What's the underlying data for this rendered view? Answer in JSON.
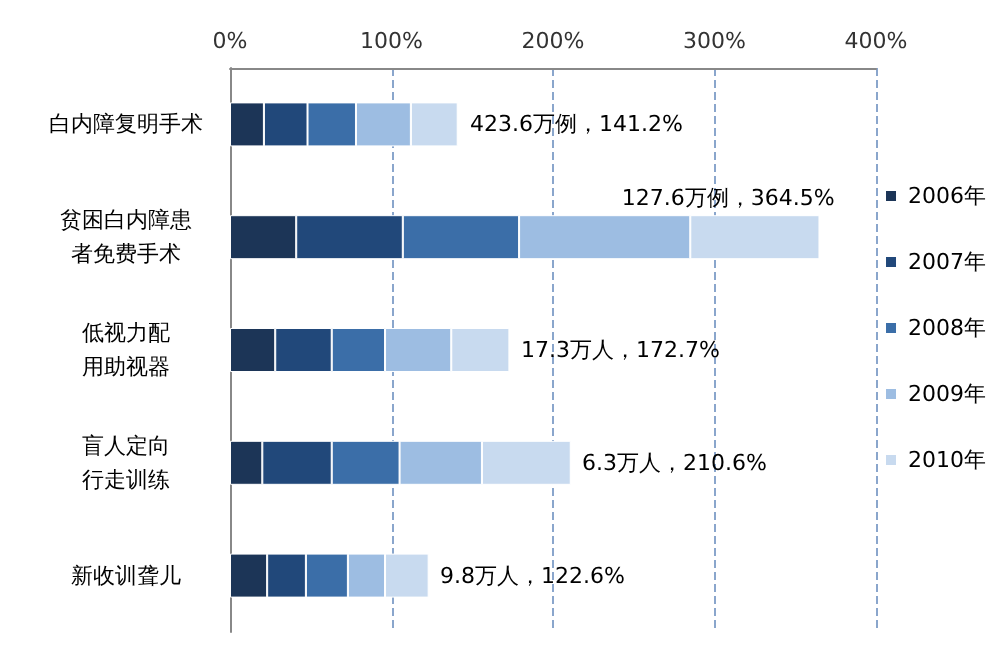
{
  "chart_data": {
    "type": "bar",
    "orientation": "horizontal",
    "stacked": true,
    "categories": [
      "白内障复明手术",
      "贫困白内障患者免费手术",
      "低视力配用助视器",
      "盲人定向行走训练",
      "新收训聋儿"
    ],
    "series": [
      {
        "name": "2006年",
        "color": "#1c3557",
        "values": [
          21,
          41,
          28,
          20,
          23
        ]
      },
      {
        "name": "2007年",
        "color": "#21487a",
        "values": [
          27,
          66,
          35,
          43,
          24
        ]
      },
      {
        "name": "2008年",
        "color": "#3b6ea8",
        "values": [
          30,
          72,
          33,
          42,
          26
        ]
      },
      {
        "name": "2009年",
        "color": "#9dbde2",
        "values": [
          34,
          106,
          41,
          51,
          23
        ]
      },
      {
        "name": "2010年",
        "color": "#c8daef",
        "values": [
          29,
          80,
          36,
          55,
          27
        ]
      }
    ],
    "xlim": [
      0,
      400
    ],
    "xticks": [
      {
        "value": 0,
        "label": "0%"
      },
      {
        "value": 100,
        "label": "100%"
      },
      {
        "value": 200,
        "label": "200%"
      },
      {
        "value": 300,
        "label": "300%"
      },
      {
        "value": 400,
        "label": "400%"
      }
    ],
    "grid": "x",
    "legend": "right",
    "annotations": [
      {
        "text": "423.6万例，141.2%",
        "x": 141.2,
        "y": "白内障复明手术"
      },
      {
        "text": "127.6万例，364.5%",
        "x": 364.5,
        "y": "贫困白内障患者免费手术"
      },
      {
        "text": "17.3万人，172.7%",
        "x": 172.7,
        "y": "低视力配用助视器"
      },
      {
        "text": "6.3万人，210.6%",
        "x": 210.6,
        "y": "盲人定向行走训练"
      },
      {
        "text": "9.8万人，122.6%",
        "x": 122.6,
        "y": "新收训聋儿"
      }
    ]
  }
}
